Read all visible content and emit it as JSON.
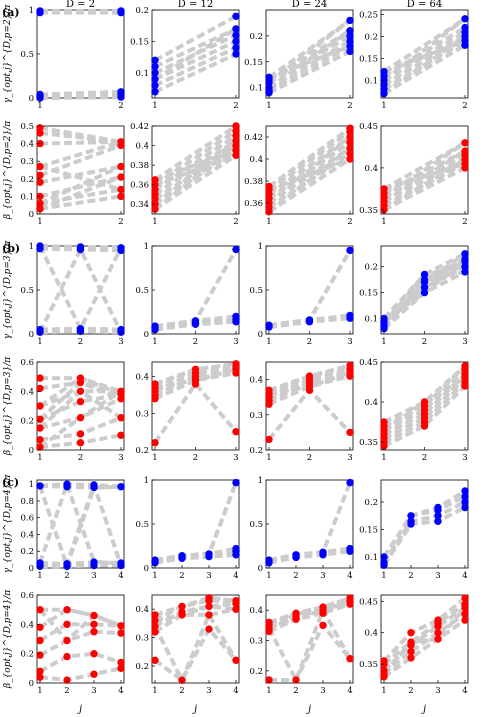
{
  "figure": {
    "panel_labels": [
      "(a)",
      "(b)",
      "(c)"
    ],
    "column_titles": [
      "D = 2",
      "D = 12",
      "D = 24",
      "D = 64"
    ],
    "xlabel": "j",
    "row_ylabels": [
      "γ_{opt,j}^{D,p=2}/π",
      "β_{opt,j}^{D,p=2}/π",
      "γ_{opt,j}^{D,p=3}/π",
      "β_{opt,j}^{D,p=3}/π",
      "γ_{opt,j}^{D,p=4}/π",
      "β_{opt,j}^{D,p=4}/π"
    ]
  },
  "chart_data": [
    {
      "type": "scatter",
      "row": 0,
      "col": 0,
      "p": 2,
      "color": "#0000ff",
      "xticks": [
        "1",
        "2"
      ],
      "ylim": [
        0,
        1
      ],
      "yticks": [
        "0",
        "0.5",
        "1"
      ],
      "x": [
        1,
        1,
        1,
        1,
        1,
        2,
        2,
        2,
        2,
        2
      ],
      "y": [
        0.0,
        0.02,
        0.04,
        0.97,
        0.99,
        0.01,
        0.04,
        0.07,
        0.97,
        0.99
      ]
    },
    {
      "type": "scatter",
      "row": 0,
      "col": 1,
      "p": 2,
      "color": "#0000ff",
      "xticks": [
        "1",
        "2"
      ],
      "ylim": [
        0.06,
        0.2
      ],
      "yticks": [
        "0.1",
        "0.15",
        "0.2"
      ],
      "x": [
        1,
        1,
        1,
        1,
        1,
        1,
        2,
        2,
        2,
        2,
        2,
        2
      ],
      "y": [
        0.07,
        0.08,
        0.09,
        0.1,
        0.11,
        0.12,
        0.13,
        0.14,
        0.15,
        0.16,
        0.17,
        0.19
      ]
    },
    {
      "type": "scatter",
      "row": 0,
      "col": 2,
      "p": 2,
      "color": "#0000ff",
      "xticks": [
        "1",
        "2"
      ],
      "ylim": [
        0.08,
        0.25
      ],
      "yticks": [
        "0.1",
        "0.15",
        "0.2"
      ],
      "x": [
        1,
        1,
        1,
        1,
        1,
        1,
        2,
        2,
        2,
        2,
        2,
        2
      ],
      "y": [
        0.09,
        0.095,
        0.1,
        0.11,
        0.115,
        0.12,
        0.17,
        0.18,
        0.19,
        0.2,
        0.21,
        0.23
      ]
    },
    {
      "type": "scatter",
      "row": 0,
      "col": 3,
      "p": 2,
      "color": "#0000ff",
      "xticks": [
        "1",
        "2"
      ],
      "ylim": [
        0.06,
        0.26
      ],
      "yticks": [
        "0.1",
        "0.15",
        "0.2",
        "0.25"
      ],
      "x": [
        1,
        1,
        1,
        1,
        1,
        1,
        2,
        2,
        2,
        2,
        2,
        2
      ],
      "y": [
        0.07,
        0.08,
        0.09,
        0.1,
        0.11,
        0.12,
        0.18,
        0.19,
        0.2,
        0.21,
        0.22,
        0.24
      ]
    },
    {
      "type": "scatter",
      "row": 1,
      "col": 0,
      "p": 2,
      "color": "#ff0000",
      "xticks": [
        "1",
        "2"
      ],
      "ylim": [
        0,
        0.5
      ],
      "yticks": [
        "0",
        "0.1",
        "0.2",
        "0.3",
        "0.4",
        "0.5"
      ],
      "x": [
        1,
        1,
        1,
        1,
        1,
        1,
        1,
        1,
        1,
        2,
        2,
        2,
        2,
        2,
        2
      ],
      "y": [
        0.03,
        0.06,
        0.1,
        0.18,
        0.22,
        0.27,
        0.4,
        0.46,
        0.49,
        0.1,
        0.14,
        0.21,
        0.27,
        0.39,
        0.41
      ]
    },
    {
      "type": "scatter",
      "row": 1,
      "col": 1,
      "p": 2,
      "color": "#ff0000",
      "xticks": [
        "1",
        "2"
      ],
      "ylim": [
        0.33,
        0.42
      ],
      "yticks": [
        "0.34",
        "0.36",
        "0.38",
        "0.4",
        "0.42"
      ],
      "x": [
        1,
        1,
        1,
        1,
        1,
        1,
        1,
        2,
        2,
        2,
        2,
        2,
        2,
        2
      ],
      "y": [
        0.335,
        0.34,
        0.345,
        0.35,
        0.355,
        0.36,
        0.365,
        0.39,
        0.395,
        0.4,
        0.405,
        0.41,
        0.415,
        0.42
      ]
    },
    {
      "type": "scatter",
      "row": 1,
      "col": 2,
      "p": 2,
      "color": "#ff0000",
      "xticks": [
        "1",
        "2"
      ],
      "ylim": [
        0.35,
        0.43
      ],
      "yticks": [
        "0.36",
        "0.38",
        "0.4",
        "0.42"
      ],
      "x": [
        1,
        1,
        1,
        1,
        1,
        1,
        1,
        2,
        2,
        2,
        2,
        2,
        2,
        2
      ],
      "y": [
        0.352,
        0.356,
        0.36,
        0.364,
        0.368,
        0.372,
        0.375,
        0.4,
        0.405,
        0.41,
        0.415,
        0.42,
        0.425,
        0.428
      ]
    },
    {
      "type": "scatter",
      "row": 1,
      "col": 3,
      "p": 2,
      "color": "#ff0000",
      "xticks": [
        "1",
        "2"
      ],
      "ylim": [
        0.345,
        0.45
      ],
      "yticks": [
        "0.35",
        "0.4",
        "0.45"
      ],
      "x": [
        1,
        1,
        1,
        1,
        1,
        1,
        2,
        2,
        2,
        2,
        2,
        2
      ],
      "y": [
        0.35,
        0.355,
        0.36,
        0.365,
        0.37,
        0.375,
        0.4,
        0.405,
        0.41,
        0.415,
        0.42,
        0.43
      ]
    },
    {
      "type": "scatter",
      "row": 2,
      "col": 0,
      "p": 3,
      "color": "#0000ff",
      "xticks": [
        "1",
        "2",
        "3"
      ],
      "ylim": [
        0,
        1
      ],
      "yticks": [
        "0",
        "0.5",
        "1"
      ],
      "x": [
        1,
        1,
        1,
        1,
        2,
        2,
        2,
        2,
        3,
        3,
        3,
        3
      ],
      "y": [
        0.02,
        0.05,
        0.97,
        1.0,
        0.03,
        0.06,
        0.96,
        0.99,
        0.02,
        0.05,
        0.95,
        0.98
      ]
    },
    {
      "type": "scatter",
      "row": 2,
      "col": 1,
      "p": 3,
      "color": "#0000ff",
      "xticks": [
        "1",
        "2",
        "3"
      ],
      "ylim": [
        0,
        1
      ],
      "yticks": [
        "0",
        "0.5",
        "1"
      ],
      "x": [
        1,
        1,
        1,
        2,
        2,
        2,
        3,
        3,
        3,
        3
      ],
      "y": [
        0.05,
        0.07,
        0.09,
        0.11,
        0.13,
        0.15,
        0.14,
        0.17,
        0.2,
        0.96
      ]
    },
    {
      "type": "scatter",
      "row": 2,
      "col": 2,
      "p": 3,
      "color": "#0000ff",
      "xticks": [
        "1",
        "2",
        "3"
      ],
      "ylim": [
        0,
        1
      ],
      "yticks": [
        "0",
        "0.5",
        "1"
      ],
      "x": [
        1,
        1,
        2,
        2,
        3,
        3,
        3
      ],
      "y": [
        0.08,
        0.1,
        0.14,
        0.16,
        0.18,
        0.21,
        0.95
      ]
    },
    {
      "type": "scatter",
      "row": 2,
      "col": 3,
      "p": 3,
      "color": "#0000ff",
      "xticks": [
        "1",
        "2",
        "3"
      ],
      "ylim": [
        0.07,
        0.24
      ],
      "yticks": [
        "0.1",
        "0.15",
        "0.2"
      ],
      "x": [
        1,
        1,
        1,
        1,
        1,
        2,
        2,
        2,
        2,
        2,
        3,
        3,
        3,
        3,
        3
      ],
      "y": [
        0.08,
        0.085,
        0.09,
        0.095,
        0.1,
        0.15,
        0.16,
        0.17,
        0.175,
        0.185,
        0.19,
        0.2,
        0.21,
        0.215,
        0.225
      ]
    },
    {
      "type": "scatter",
      "row": 3,
      "col": 0,
      "p": 3,
      "color": "#ff0000",
      "xticks": [
        "1",
        "2",
        "3"
      ],
      "ylim": [
        0,
        0.6
      ],
      "yticks": [
        "0",
        "0.2",
        "0.4",
        "0.6"
      ],
      "x": [
        1,
        1,
        1,
        1,
        1,
        1,
        1,
        2,
        2,
        2,
        2,
        2,
        2,
        2,
        3,
        3,
        3,
        3,
        3
      ],
      "y": [
        0.02,
        0.07,
        0.15,
        0.21,
        0.3,
        0.42,
        0.49,
        0.05,
        0.11,
        0.22,
        0.33,
        0.4,
        0.46,
        0.49,
        0.1,
        0.22,
        0.35,
        0.38,
        0.4
      ]
    },
    {
      "type": "scatter",
      "row": 3,
      "col": 1,
      "p": 3,
      "color": "#ff0000",
      "xticks": [
        "1",
        "2",
        "3"
      ],
      "ylim": [
        0.2,
        0.44
      ],
      "yticks": [
        "0.2",
        "0.3",
        "0.4"
      ],
      "x": [
        1,
        1,
        1,
        1,
        1,
        1,
        2,
        2,
        2,
        2,
        2,
        3,
        3,
        3,
        3,
        3,
        3
      ],
      "y": [
        0.22,
        0.34,
        0.35,
        0.36,
        0.37,
        0.38,
        0.38,
        0.39,
        0.4,
        0.41,
        0.42,
        0.25,
        0.41,
        0.42,
        0.425,
        0.43,
        0.435
      ]
    },
    {
      "type": "scatter",
      "row": 3,
      "col": 2,
      "p": 3,
      "color": "#ff0000",
      "xticks": [
        "1",
        "2",
        "3"
      ],
      "ylim": [
        0.2,
        0.45
      ],
      "yticks": [
        "0.2",
        "0.3",
        "0.4"
      ],
      "x": [
        1,
        1,
        1,
        1,
        1,
        1,
        2,
        2,
        2,
        2,
        2,
        3,
        3,
        3,
        3,
        3,
        3
      ],
      "y": [
        0.23,
        0.33,
        0.34,
        0.35,
        0.36,
        0.37,
        0.37,
        0.38,
        0.39,
        0.4,
        0.41,
        0.25,
        0.41,
        0.42,
        0.425,
        0.43,
        0.44
      ]
    },
    {
      "type": "scatter",
      "row": 3,
      "col": 3,
      "p": 3,
      "color": "#ff0000",
      "xticks": [
        "1",
        "2",
        "3"
      ],
      "ylim": [
        0.34,
        0.45
      ],
      "yticks": [
        "0.35",
        "0.4",
        "0.45"
      ],
      "x": [
        1,
        1,
        1,
        1,
        1,
        1,
        1,
        2,
        2,
        2,
        2,
        2,
        2,
        2,
        3,
        3,
        3,
        3,
        3,
        3
      ],
      "y": [
        0.345,
        0.35,
        0.355,
        0.36,
        0.365,
        0.37,
        0.375,
        0.37,
        0.375,
        0.38,
        0.385,
        0.39,
        0.395,
        0.4,
        0.42,
        0.425,
        0.43,
        0.435,
        0.44,
        0.445
      ]
    },
    {
      "type": "scatter",
      "row": 4,
      "col": 0,
      "p": 4,
      "color": "#0000ff",
      "xticks": [
        "1",
        "2",
        "3",
        "4"
      ],
      "ylim": [
        0,
        1.05
      ],
      "yticks": [
        "0",
        "0.2",
        "0.4",
        "0.6",
        "0.8",
        "1"
      ],
      "x": [
        1,
        1,
        1,
        2,
        2,
        2,
        2,
        3,
        3,
        3,
        3,
        4,
        4,
        4
      ],
      "y": [
        0.02,
        0.06,
        0.98,
        0.02,
        0.05,
        0.97,
        1.0,
        0.03,
        0.07,
        0.96,
        0.99,
        0.03,
        0.06,
        0.97
      ]
    },
    {
      "type": "scatter",
      "row": 4,
      "col": 1,
      "p": 4,
      "color": "#0000ff",
      "xticks": [
        "1",
        "2",
        "3",
        "4"
      ],
      "ylim": [
        0,
        1
      ],
      "yticks": [
        "0",
        "0.5",
        "1"
      ],
      "x": [
        1,
        1,
        2,
        2,
        3,
        3,
        4,
        4,
        4,
        4
      ],
      "y": [
        0.06,
        0.09,
        0.11,
        0.14,
        0.13,
        0.16,
        0.15,
        0.19,
        0.22,
        0.97
      ]
    },
    {
      "type": "scatter",
      "row": 4,
      "col": 2,
      "p": 4,
      "color": "#0000ff",
      "xticks": [
        "1",
        "2",
        "3",
        "4"
      ],
      "ylim": [
        0,
        1
      ],
      "yticks": [
        "0",
        "0.5",
        "1"
      ],
      "x": [
        1,
        1,
        2,
        2,
        3,
        3,
        4,
        4,
        4
      ],
      "y": [
        0.06,
        0.09,
        0.12,
        0.15,
        0.15,
        0.18,
        0.19,
        0.22,
        0.97
      ]
    },
    {
      "type": "scatter",
      "row": 4,
      "col": 3,
      "p": 4,
      "color": "#0000ff",
      "xticks": [
        "1",
        "2",
        "3",
        "4"
      ],
      "ylim": [
        0.08,
        0.24
      ],
      "yticks": [
        "0.1",
        "0.15",
        "0.2"
      ],
      "x": [
        1,
        1,
        1,
        2,
        2,
        2,
        3,
        3,
        3,
        3,
        4,
        4,
        4,
        4
      ],
      "y": [
        0.085,
        0.09,
        0.1,
        0.16,
        0.165,
        0.175,
        0.165,
        0.175,
        0.185,
        0.19,
        0.19,
        0.2,
        0.21,
        0.22
      ]
    },
    {
      "type": "scatter",
      "row": 5,
      "col": 0,
      "p": 4,
      "color": "#ff0000",
      "xticks": [
        "1",
        "2",
        "3",
        "4"
      ],
      "ylim": [
        0,
        0.6
      ],
      "yticks": [
        "0",
        "0.2",
        "0.4",
        "0.6"
      ],
      "x": [
        1,
        1,
        1,
        1,
        1,
        1,
        2,
        2,
        2,
        2,
        2,
        3,
        3,
        3,
        3,
        3,
        4,
        4,
        4,
        4
      ],
      "y": [
        0.04,
        0.08,
        0.19,
        0.29,
        0.38,
        0.5,
        0.02,
        0.18,
        0.29,
        0.4,
        0.5,
        0.06,
        0.2,
        0.35,
        0.4,
        0.46,
        0.1,
        0.14,
        0.34,
        0.39
      ]
    },
    {
      "type": "scatter",
      "row": 5,
      "col": 1,
      "p": 4,
      "color": "#ff0000",
      "xticks": [
        "1",
        "2",
        "3",
        "4"
      ],
      "ylim": [
        0.14,
        0.45
      ],
      "yticks": [
        "0.2",
        "0.3",
        "0.4"
      ],
      "x": [
        1,
        1,
        1,
        1,
        1,
        2,
        2,
        2,
        2,
        3,
        3,
        3,
        3,
        3,
        4,
        4,
        4,
        4
      ],
      "y": [
        0.22,
        0.32,
        0.34,
        0.36,
        0.38,
        0.15,
        0.38,
        0.39,
        0.41,
        0.33,
        0.38,
        0.41,
        0.43,
        0.44,
        0.22,
        0.4,
        0.42,
        0.43
      ]
    },
    {
      "type": "scatter",
      "row": 5,
      "col": 2,
      "p": 4,
      "color": "#ff0000",
      "xticks": [
        "1",
        "2",
        "3",
        "4"
      ],
      "ylim": [
        0.16,
        0.45
      ],
      "yticks": [
        "0.2",
        "0.3",
        "0.4"
      ],
      "x": [
        1,
        1,
        1,
        1,
        1,
        2,
        2,
        2,
        2,
        3,
        3,
        3,
        3,
        4,
        4,
        4,
        4
      ],
      "y": [
        0.17,
        0.33,
        0.34,
        0.35,
        0.36,
        0.17,
        0.37,
        0.38,
        0.39,
        0.35,
        0.39,
        0.4,
        0.41,
        0.24,
        0.42,
        0.43,
        0.44
      ]
    },
    {
      "type": "scatter",
      "row": 5,
      "col": 3,
      "p": 4,
      "color": "#ff0000",
      "xticks": [
        "1",
        "2",
        "3",
        "4"
      ],
      "ylim": [
        0.32,
        0.46
      ],
      "yticks": [
        "0.35",
        "0.4",
        "0.45"
      ],
      "x": [
        1,
        1,
        1,
        1,
        1,
        2,
        2,
        2,
        2,
        2,
        3,
        3,
        3,
        3,
        3,
        4,
        4,
        4,
        4,
        4
      ],
      "y": [
        0.33,
        0.335,
        0.34,
        0.35,
        0.355,
        0.36,
        0.37,
        0.38,
        0.385,
        0.4,
        0.39,
        0.4,
        0.41,
        0.415,
        0.42,
        0.42,
        0.43,
        0.44,
        0.445,
        0.455
      ]
    }
  ]
}
